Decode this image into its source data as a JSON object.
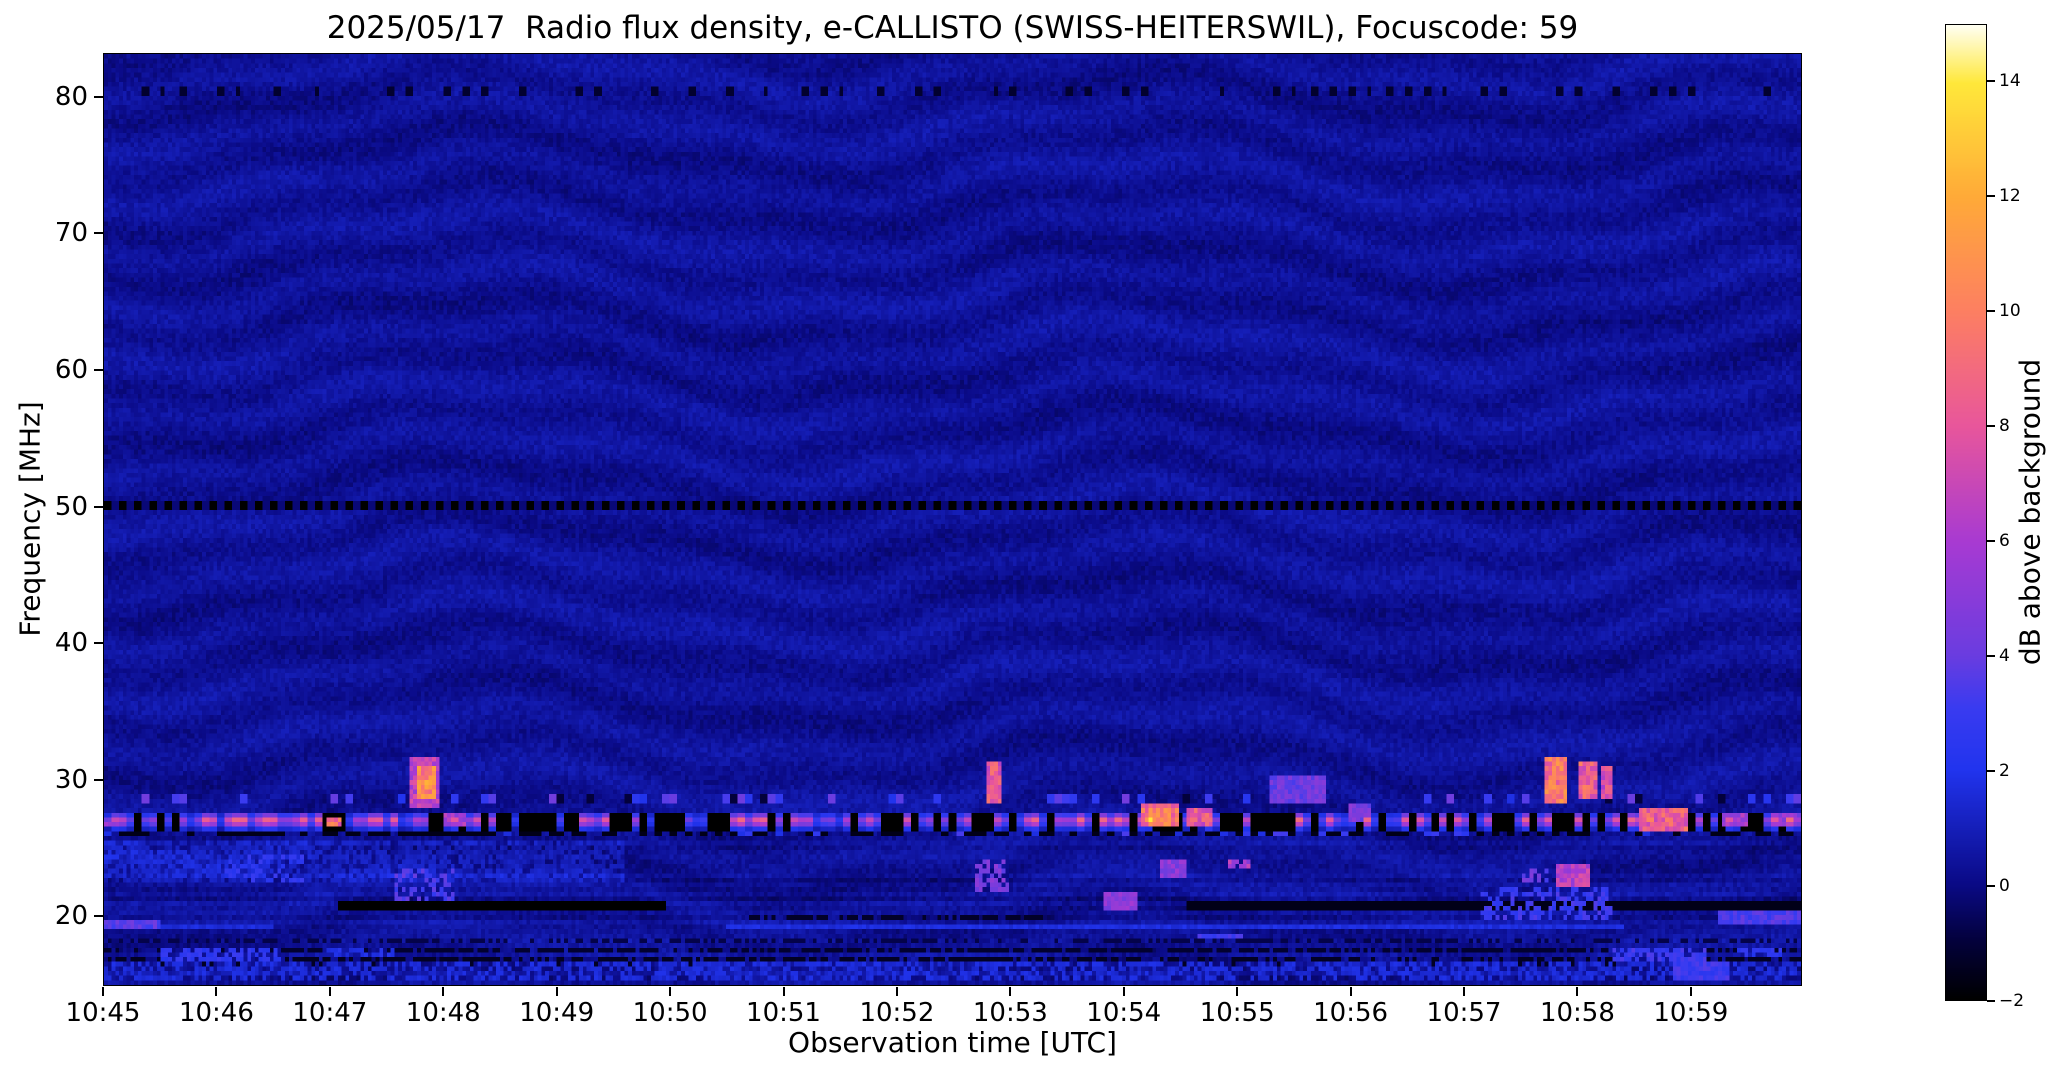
{
  "figure": {
    "background": "#ffffff",
    "axes_color": "#000000"
  },
  "chart_data": {
    "type": "heatmap",
    "title": "2025/05/17  Radio flux density, e-CALLISTO (SWISS-HEITERSWIL), Focuscode: 59",
    "xlabel": "Observation time [UTC]",
    "ylabel": "Frequency [MHz]",
    "colorbar_label": "dB above background",
    "x_ticks": [
      "10:45",
      "10:46",
      "10:47",
      "10:48",
      "10:49",
      "10:50",
      "10:51",
      "10:52",
      "10:53",
      "10:54",
      "10:55",
      "10:56",
      "10:57",
      "10:58",
      "10:59"
    ],
    "x_range_minutes_after_1045": [
      0,
      14.98
    ],
    "y_ticks_mhz": [
      20,
      30,
      40,
      50,
      60,
      70,
      80
    ],
    "y_range_mhz": [
      14.9,
      83.2
    ],
    "color_limits_db": [
      -2,
      15
    ],
    "colorbar_ticks_db": [
      14,
      12,
      10,
      8,
      6,
      4,
      2,
      0,
      -2
    ],
    "grid": false,
    "colormap_stops": [
      [
        0.0,
        "#000000"
      ],
      [
        0.06,
        "#03013c"
      ],
      [
        0.118,
        "#0a0a86"
      ],
      [
        0.235,
        "#2134ee"
      ],
      [
        0.3,
        "#3a3bf0"
      ],
      [
        0.353,
        "#6a3ce0"
      ],
      [
        0.47,
        "#a83ad2"
      ],
      [
        0.588,
        "#e8569c"
      ],
      [
        0.706,
        "#fd7f62"
      ],
      [
        0.824,
        "#ffaa38"
      ],
      [
        0.941,
        "#ffe83a"
      ],
      [
        1.0,
        "#fffff0"
      ]
    ],
    "background_noise": {
      "mean_db": 0.32,
      "spread_db": 0.7,
      "ripple_amp_db": 0.26
    },
    "persistent_lines": [
      {
        "name": "calibration-dashes-50mhz",
        "f_mhz": [
          49.75,
          50.4
        ],
        "db": -2,
        "pattern": "dashed"
      },
      {
        "name": "faint-dashes-80mhz",
        "f_mhz": [
          80.25,
          80.85
        ],
        "db": -1.2,
        "pattern": "dashed-sparse"
      },
      {
        "name": "rfi-band-27mhz",
        "f_mhz": [
          26.25,
          27.65
        ],
        "db_dark": -2,
        "db_bright": [
          2.5,
          10
        ],
        "pattern": "segmented"
      },
      {
        "name": "rfi-band-26mhz",
        "f_mhz": [
          25.7,
          26.25
        ],
        "db_dark": -1.6,
        "db_bright": [
          1.5,
          3.5
        ],
        "pattern": "segmented"
      },
      {
        "name": "rfi-band-28mhz",
        "f_mhz": [
          28.15,
          28.85
        ],
        "db_bright": [
          1.8,
          4.3
        ],
        "pattern": "sparse"
      }
    ],
    "features": [
      {
        "name": "dark-17-row",
        "t": [
          0.0,
          14.98
        ],
        "f": [
          17.15,
          17.75
        ],
        "db": -1.2,
        "mode": "min",
        "sparse": 0.75
      },
      {
        "name": "dark-18-row",
        "t": [
          0.0,
          14.98
        ],
        "f": [
          18.0,
          18.4
        ],
        "db": -0.8,
        "mode": "min",
        "sparse": 0.5
      },
      {
        "name": "dark-16-row",
        "t": [
          0.0,
          14.98
        ],
        "f": [
          16.4,
          16.9
        ],
        "db": -1.4,
        "mode": "min",
        "sparse": 0.6
      },
      {
        "name": "dark-21-a",
        "t": [
          2.05,
          4.95
        ],
        "f": [
          20.5,
          21.05
        ],
        "db": -2.0,
        "mode": "min"
      },
      {
        "name": "dark-21-b",
        "t": [
          9.55,
          14.98
        ],
        "f": [
          20.45,
          21.0
        ],
        "db": -1.6,
        "mode": "min"
      },
      {
        "name": "dark-20-mid",
        "t": [
          5.7,
          8.3
        ],
        "f": [
          19.6,
          20.0
        ],
        "db": -1.3,
        "mode": "min",
        "sparse": 0.7
      },
      {
        "name": "enh-low-left",
        "t": [
          0.0,
          4.6
        ],
        "f": [
          22.5,
          25.4
        ],
        "db": 0.9,
        "mode": "add",
        "sparse": 0.7
      },
      {
        "name": "enh-16-row",
        "t": [
          0.0,
          14.98
        ],
        "f": [
          15.3,
          16.5
        ],
        "db": 1.6,
        "sparse": 0.55
      },
      {
        "name": "burst-1048-halo",
        "t": [
          2.7,
          2.97
        ],
        "f": [
          28.0,
          31.7
        ],
        "db": 6.5
      },
      {
        "name": "burst-1048-core",
        "t": [
          2.76,
          2.92
        ],
        "f": [
          28.6,
          30.8
        ],
        "db": 10.5
      },
      {
        "name": "scatter-1047-low",
        "t": [
          2.55,
          3.1
        ],
        "f": [
          21.0,
          23.4
        ],
        "db": 3.4,
        "sparse": 0.45
      },
      {
        "name": "scatter-1046-low",
        "t": [
          1.05,
          1.75
        ],
        "f": [
          22.3,
          24.3
        ],
        "db": 2.6,
        "sparse": 0.35
      },
      {
        "name": "burst-1052-streak",
        "t": [
          7.78,
          7.93
        ],
        "f": [
          28.2,
          31.4
        ],
        "db": 8.0
      },
      {
        "name": "scatter-1052-low",
        "t": [
          7.7,
          8.0
        ],
        "f": [
          21.8,
          24.0
        ],
        "db": 4.5,
        "sparse": 0.6
      },
      {
        "name": "burst-1054a",
        "t": [
          9.17,
          9.5
        ],
        "f": [
          26.4,
          28.1
        ],
        "db": 9.5
      },
      {
        "name": "hot-1054",
        "t": [
          9.2,
          9.32
        ],
        "f": [
          26.7,
          27.25
        ],
        "db": 12.0
      },
      {
        "name": "burst-1054b",
        "t": [
          9.55,
          9.8
        ],
        "f": [
          26.5,
          27.9
        ],
        "db": 8.0
      },
      {
        "name": "blob-1054-low",
        "t": [
          9.33,
          9.55
        ],
        "f": [
          22.7,
          24.1
        ],
        "db": 5.0
      },
      {
        "name": "dash-1055-24",
        "t": [
          9.88,
          10.12
        ],
        "f": [
          23.5,
          24.1
        ],
        "db": 6.0,
        "sparse": 0.7
      },
      {
        "name": "blob-1055-29",
        "t": [
          10.3,
          10.8
        ],
        "f": [
          28.3,
          30.3
        ],
        "db": 4.2
      },
      {
        "name": "blob-1056-27",
        "t": [
          11.0,
          11.2
        ],
        "f": [
          26.8,
          28.3
        ],
        "db": 4.5
      },
      {
        "name": "bar-1057-a",
        "t": [
          12.73,
          12.92
        ],
        "f": [
          28.2,
          31.6
        ],
        "db": 9.5
      },
      {
        "name": "bar-1058-b",
        "t": [
          13.03,
          13.17
        ],
        "f": [
          28.4,
          31.4
        ],
        "db": 8.5
      },
      {
        "name": "bar-1058-c",
        "t": [
          13.22,
          13.33
        ],
        "f": [
          28.4,
          30.9
        ],
        "db": 7.5
      },
      {
        "name": "blob-1057-low",
        "t": [
          12.8,
          13.1
        ],
        "f": [
          22.1,
          23.7
        ],
        "db": 6.5
      },
      {
        "name": "blob-1058-27",
        "t": [
          13.55,
          13.98
        ],
        "f": [
          26.3,
          28.0
        ],
        "db": 8.5
      },
      {
        "name": "blob-1059-27",
        "t": [
          14.28,
          14.5
        ],
        "f": [
          26.4,
          27.6
        ],
        "db": 6.0
      },
      {
        "name": "edge-right-27",
        "t": [
          14.72,
          14.98
        ],
        "f": [
          26.4,
          27.7
        ],
        "db": 5.0
      },
      {
        "name": "hot-1046",
        "t": [
          1.95,
          2.1
        ],
        "f": [
          26.6,
          27.3
        ],
        "db": 9.0
      },
      {
        "name": "blob-1047-27",
        "t": [
          3.0,
          3.2
        ],
        "f": [
          26.5,
          27.4
        ],
        "db": 6.0
      },
      {
        "name": "left-edge-27",
        "t": [
          0.0,
          0.15
        ],
        "f": [
          26.4,
          27.3
        ],
        "db": 5.0
      },
      {
        "name": "line-19-left",
        "t": [
          0.0,
          0.5
        ],
        "f": [
          18.9,
          19.6
        ],
        "db": 3.6
      },
      {
        "name": "line-19-left2",
        "t": [
          0.5,
          1.5
        ],
        "f": [
          19.0,
          19.4
        ],
        "db": 1.6
      },
      {
        "name": "line-19-mid",
        "t": [
          5.5,
          13.4
        ],
        "f": [
          18.85,
          19.3
        ],
        "db": 1.7
      },
      {
        "name": "blob-1053-21",
        "t": [
          8.82,
          9.12
        ],
        "f": [
          20.3,
          21.7
        ],
        "db": 5.0
      },
      {
        "name": "dash-1054-18",
        "t": [
          9.65,
          10.05
        ],
        "f": [
          18.2,
          18.8
        ],
        "db": 3.0
      },
      {
        "name": "blue-left-17",
        "t": [
          0.5,
          1.55
        ],
        "f": [
          16.7,
          17.7
        ],
        "db": 2.6,
        "sparse": 0.6
      },
      {
        "name": "blue-1047-17",
        "t": [
          1.95,
          2.55
        ],
        "f": [
          16.9,
          17.6
        ],
        "db": 2.0,
        "sparse": 0.5
      },
      {
        "name": "blue-1058-17",
        "t": [
          13.3,
          14.15
        ],
        "f": [
          16.7,
          17.8
        ],
        "db": 3.0,
        "sparse": 0.65
      },
      {
        "name": "blue-right-17",
        "t": [
          14.4,
          14.8
        ],
        "f": [
          16.9,
          17.7
        ],
        "db": 2.5,
        "sparse": 0.6
      },
      {
        "name": "ramp-1057-21",
        "t": [
          12.15,
          13.3
        ],
        "f": [
          19.7,
          22.0
        ],
        "db": 3.0,
        "sparse": 0.5
      },
      {
        "name": "blob-1057-23",
        "t": [
          12.5,
          12.75
        ],
        "f": [
          22.3,
          23.3
        ],
        "db": 4.0,
        "sparse": 0.6
      },
      {
        "name": "right-20-blue",
        "t": [
          14.25,
          14.98
        ],
        "f": [
          19.3,
          20.4
        ],
        "db": 3.4
      },
      {
        "name": "right-16-blue",
        "t": [
          13.85,
          14.35
        ],
        "f": [
          15.2,
          16.6
        ],
        "db": 3.0
      }
    ]
  }
}
